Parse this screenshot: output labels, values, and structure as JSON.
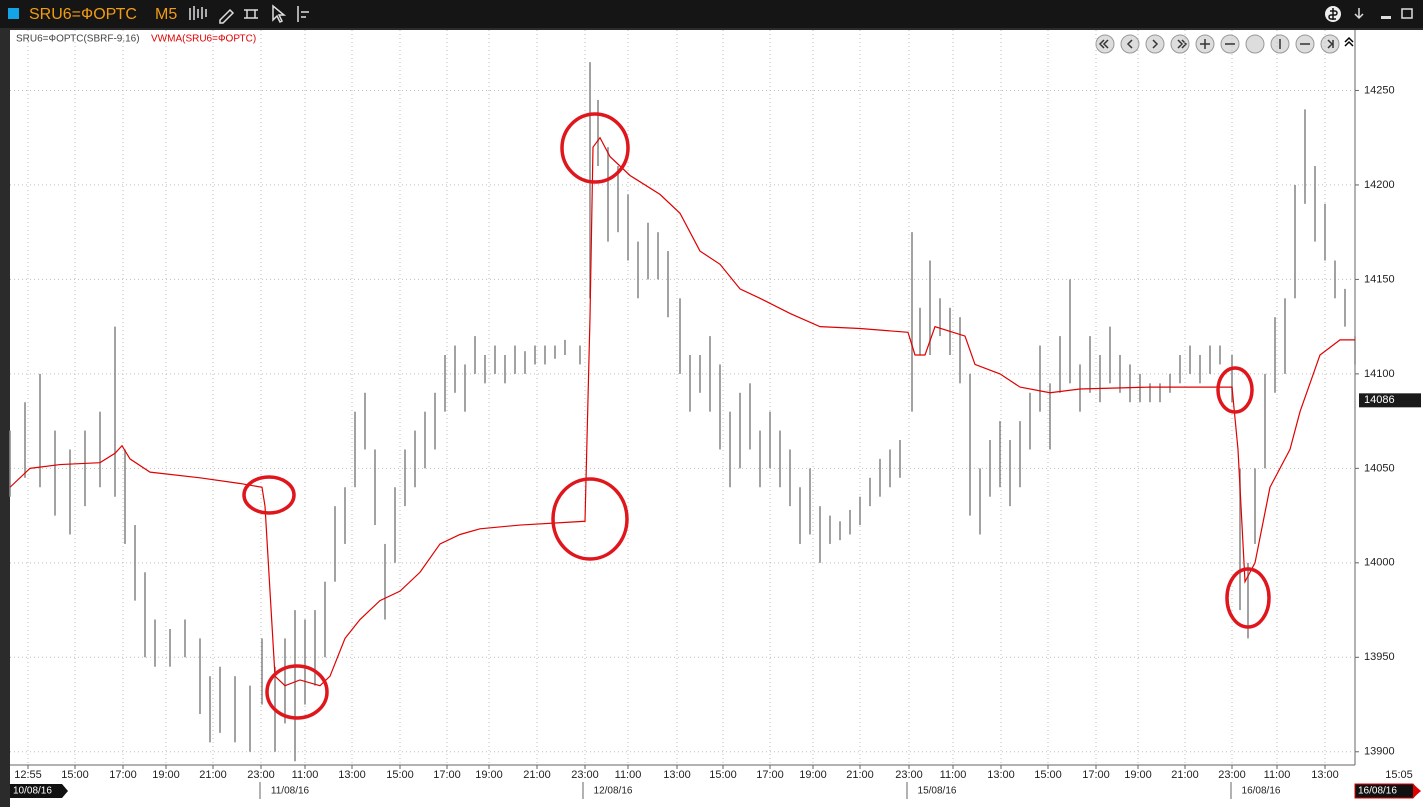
{
  "window": {
    "title": "SRU6=ФОРТС",
    "timeframe": "M5"
  },
  "chart_data": {
    "type": "combo",
    "grid": true,
    "xlim": [
      0,
      672.5
    ],
    "ylim": [
      13893,
      14282
    ],
    "yticks": [
      13900,
      13950,
      14000,
      14050,
      14100,
      14150,
      14200,
      14250
    ],
    "xticks": [
      {
        "value": 9,
        "label": "12:55"
      },
      {
        "value": 32.5,
        "label": "15:00"
      },
      {
        "value": 56.5,
        "label": "17:00"
      },
      {
        "value": 78,
        "label": "19:00"
      },
      {
        "value": 101.5,
        "label": "21:00"
      },
      {
        "value": 125.5,
        "label": "23:00"
      },
      {
        "value": 147.5,
        "label": "11:00"
      },
      {
        "value": 171,
        "label": "13:00"
      },
      {
        "value": 195,
        "label": "15:00"
      },
      {
        "value": 218.5,
        "label": "17:00"
      },
      {
        "value": 239.5,
        "label": "19:00"
      },
      {
        "value": 263.5,
        "label": "21:00"
      },
      {
        "value": 287.5,
        "label": "23:00"
      },
      {
        "value": 309,
        "label": "11:00"
      },
      {
        "value": 333.5,
        "label": "13:00"
      },
      {
        "value": 356.5,
        "label": "15:00"
      },
      {
        "value": 380,
        "label": "17:00"
      },
      {
        "value": 401.5,
        "label": "19:00"
      },
      {
        "value": 425,
        "label": "21:00"
      },
      {
        "value": 449.5,
        "label": "23:00"
      },
      {
        "value": 471.5,
        "label": "11:00"
      },
      {
        "value": 495.5,
        "label": "13:00"
      },
      {
        "value": 519,
        "label": "15:00"
      },
      {
        "value": 543,
        "label": "17:00"
      },
      {
        "value": 564,
        "label": "19:00"
      },
      {
        "value": 587.5,
        "label": "21:00"
      },
      {
        "value": 611,
        "label": "23:00"
      },
      {
        "value": 633.5,
        "label": "11:00"
      },
      {
        "value": 657.5,
        "label": "13:00"
      },
      {
        "value": 694.5,
        "label": "15:05"
      }
    ],
    "date_labels": [
      {
        "value": 0,
        "label": "10/08/16"
      },
      {
        "value": 140,
        "label": "11/08/16"
      },
      {
        "value": 301.5,
        "label": "12/08/16"
      },
      {
        "value": 463.5,
        "label": "15/08/16"
      },
      {
        "value": 625.5,
        "label": "16/08/16"
      },
      {
        "value": 672.5,
        "label": "16/08/16"
      }
    ],
    "last_price": 14086,
    "series": [
      {
        "name": "SRU6=ФОРТС(SBRF-9.16)",
        "type": "range",
        "color": "#8a8a8a",
        "x": [
          0,
          7.5,
          15,
          22.5,
          30,
          37.5,
          45,
          52.5,
          57.5,
          62.5,
          67.5,
          72.5,
          80,
          87.5,
          95,
          100,
          105,
          112.5,
          120,
          126,
          132.5,
          137.5,
          142.5,
          147.5,
          152.5,
          157.5,
          162.5,
          167.5,
          172.5,
          177.5,
          182.5,
          187.5,
          192.5,
          197.5,
          202.5,
          207.5,
          212.5,
          217.5,
          222.5,
          227.5,
          232.5,
          237.5,
          242.5,
          247.5,
          252.5,
          257.5,
          262.5,
          267.5,
          272.5,
          277.5,
          285,
          290,
          294,
          299,
          304,
          309,
          314,
          319,
          324,
          329,
          335,
          340,
          345,
          350,
          355,
          360,
          365,
          370,
          375,
          380,
          385,
          390,
          395,
          400,
          405,
          410,
          415,
          420,
          425,
          430,
          435,
          440,
          445,
          451,
          455,
          460,
          465,
          470,
          475,
          480,
          485,
          490,
          495,
          500,
          505,
          510,
          515,
          520,
          525,
          530,
          535,
          540,
          545,
          550,
          555,
          560,
          565,
          570,
          575,
          580,
          585,
          590,
          595,
          600,
          605,
          611,
          615,
          619,
          622.5,
          627.5,
          632.5,
          637.5,
          642.5,
          647.5,
          652.5,
          657.5,
          662.5,
          667.5,
          672.5
        ],
        "low": [
          14035,
          14045,
          14040,
          14025,
          14015,
          14030,
          14040,
          14035,
          14010,
          13980,
          13950,
          13945,
          13945,
          13950,
          13920,
          13905,
          13910,
          13905,
          13900,
          13925,
          13900,
          13915,
          13895,
          13925,
          13935,
          13950,
          13990,
          14010,
          14040,
          14060,
          14020,
          13970,
          14000,
          14030,
          14040,
          14050,
          14060,
          14080,
          14090,
          14080,
          14100,
          14095,
          14100,
          14095,
          14100,
          14100,
          14105,
          14105,
          14108,
          14110,
          14105,
          14140,
          14210,
          14170,
          14175,
          14160,
          14140,
          14150,
          14150,
          14130,
          14100,
          14080,
          14090,
          14080,
          14060,
          14040,
          14050,
          14060,
          14040,
          14050,
          14040,
          14030,
          14010,
          14015,
          14000,
          14010,
          14012,
          14015,
          14020,
          14030,
          14035,
          14040,
          14045,
          14080,
          14110,
          14110,
          14120,
          14110,
          14095,
          14025,
          14015,
          14035,
          14040,
          14030,
          14040,
          14060,
          14080,
          14060,
          14090,
          14095,
          14080,
          14090,
          14085,
          14095,
          14090,
          14085,
          14085,
          14085,
          14085,
          14090,
          14095,
          14100,
          14095,
          14100,
          14105,
          14085,
          13975,
          13960,
          14010,
          14050,
          14090,
          14100,
          14140,
          14190,
          14170,
          14160,
          14140,
          14125,
          14105
        ],
        "high": [
          14070,
          14085,
          14100,
          14070,
          14060,
          14070,
          14080,
          14125,
          14060,
          14020,
          13995,
          13970,
          13965,
          13970,
          13960,
          13940,
          13945,
          13940,
          13935,
          13960,
          13945,
          13960,
          13975,
          13970,
          13975,
          13990,
          14030,
          14040,
          14080,
          14090,
          14060,
          14010,
          14040,
          14060,
          14070,
          14080,
          14090,
          14110,
          14115,
          14105,
          14120,
          14110,
          14115,
          14110,
          14115,
          14112,
          14115,
          14115,
          14115,
          14118,
          14115,
          14265,
          14245,
          14220,
          14210,
          14195,
          14170,
          14180,
          14175,
          14165,
          14140,
          14110,
          14110,
          14120,
          14105,
          14080,
          14090,
          14095,
          14070,
          14080,
          14070,
          14060,
          14040,
          14050,
          14030,
          14025,
          14022,
          14028,
          14035,
          14045,
          14055,
          14060,
          14065,
          14175,
          14135,
          14160,
          14140,
          14135,
          14130,
          14100,
          14050,
          14065,
          14075,
          14065,
          14075,
          14090,
          14115,
          14095,
          14120,
          14150,
          14105,
          14120,
          14110,
          14125,
          14110,
          14105,
          14100,
          14095,
          14095,
          14100,
          14110,
          14115,
          14110,
          14115,
          14115,
          14110,
          14050,
          14000,
          14050,
          14100,
          14130,
          14140,
          14200,
          14240,
          14210,
          14190,
          14160,
          14145,
          14120
        ]
      },
      {
        "name": "VWMA(SRU6=ФОРТС)",
        "type": "line",
        "color": "#e00000",
        "x": [
          0,
          10,
          25,
          45,
          52.5,
          56,
          60,
          70,
          95,
          115,
          126,
          127.5,
          132.5,
          137.5,
          145,
          155,
          160,
          167.5,
          175,
          185,
          195,
          205,
          215,
          225,
          235,
          255,
          287.5,
          290,
          291.5,
          295,
          300,
          310,
          325,
          335,
          345,
          355,
          365,
          375,
          390,
          405,
          425,
          449,
          452.5,
          457.5,
          462.5,
          477.5,
          482.5,
          495,
          505,
          520,
          535,
          570,
          611,
          614,
          617.5,
          622.5,
          630,
          640,
          645,
          655,
          665,
          672.5
        ],
        "values": [
          14040,
          14050,
          14052,
          14053,
          14058,
          14062,
          14055,
          14048,
          14045,
          14042,
          14040,
          14030,
          13940,
          13935,
          13938,
          13935,
          13940,
          13960,
          13970,
          13980,
          13985,
          13995,
          14010,
          14015,
          14018,
          14020,
          14022,
          14130,
          14220,
          14225,
          14215,
          14205,
          14195,
          14185,
          14165,
          14158,
          14145,
          14140,
          14132,
          14125,
          14124,
          14122,
          14110,
          14110,
          14125,
          14120,
          14105,
          14100,
          14093,
          14090,
          14092,
          14093,
          14093,
          14060,
          13990,
          14000,
          14040,
          14060,
          14080,
          14110,
          14118,
          14118
        ]
      }
    ]
  }
}
